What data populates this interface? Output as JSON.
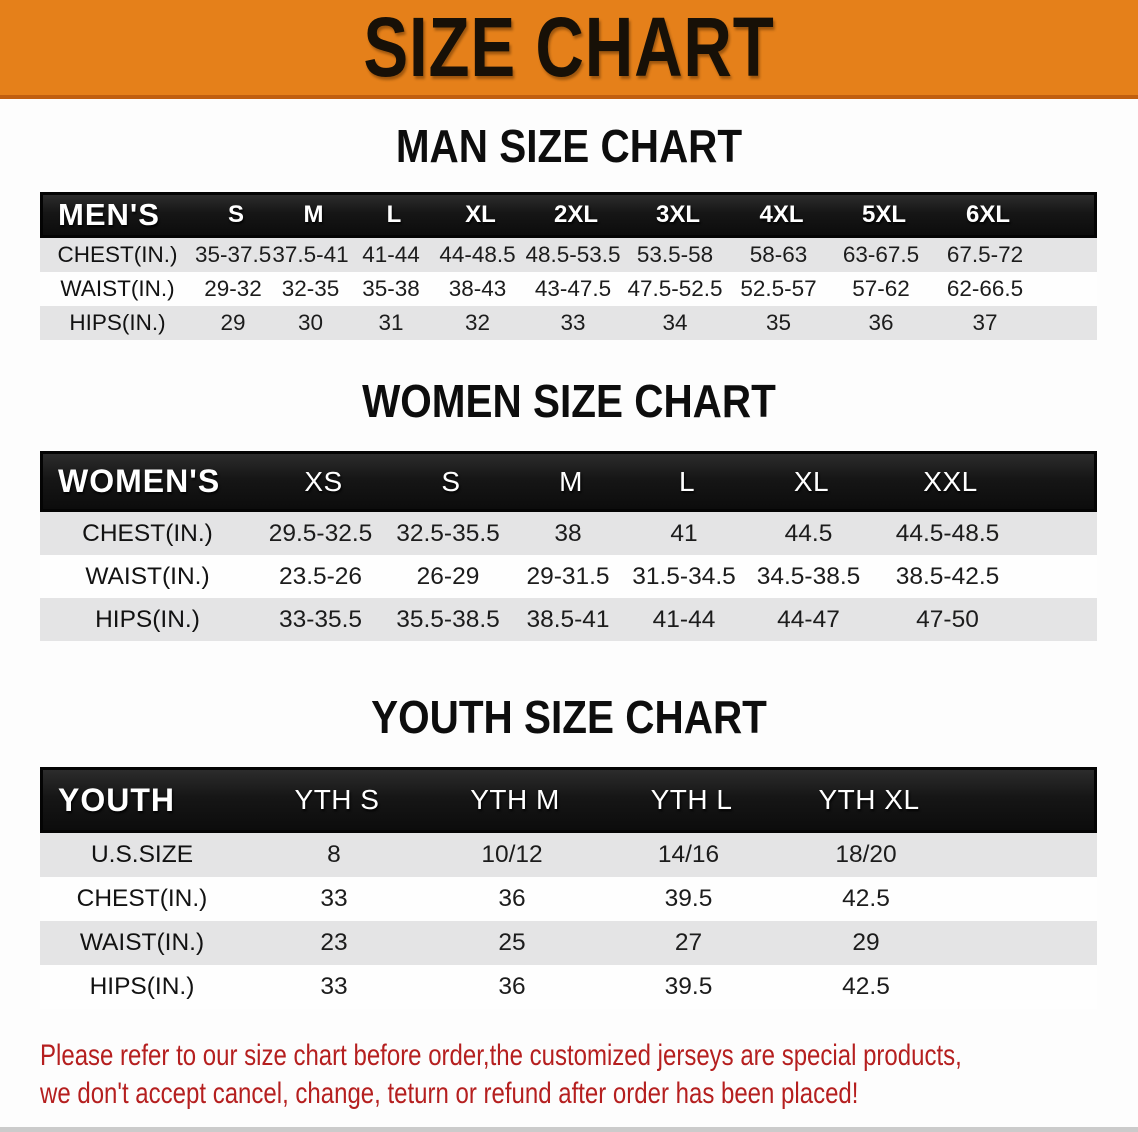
{
  "banner": {
    "title": "SIZE CHART"
  },
  "colors": {
    "banner_bg": "#E5801A",
    "banner_edge": "#C05F10",
    "header_bg": "#161616",
    "stripe_gray": "#E4E4E5",
    "disclaimer_red": "#B51F1F",
    "title_black": "#0D0D0D"
  },
  "sections": [
    {
      "title": "MAN SIZE CHART",
      "table": {
        "header": [
          "MEN'S",
          "S",
          "M",
          "L",
          "XL",
          "2XL",
          "3XL",
          "4XL",
          "5XL",
          "6XL"
        ],
        "rows": [
          {
            "label": "CHEST(IN.)",
            "values": [
              "35-37.5",
              "37.5-41",
              "41-44",
              "44-48.5",
              "48.5-53.5",
              "53.5-58",
              "58-63",
              "63-67.5",
              "67.5-72"
            ]
          },
          {
            "label": "WAIST(IN.)",
            "values": [
              "29-32",
              "32-35",
              "35-38",
              "38-43",
              "43-47.5",
              "47.5-52.5",
              "52.5-57",
              "57-62",
              "62-66.5"
            ]
          },
          {
            "label": "HIPS(IN.)",
            "values": [
              "29",
              "30",
              "31",
              "32",
              "33",
              "34",
              "35",
              "36",
              "37"
            ]
          }
        ]
      }
    },
    {
      "title": "WOMEN SIZE CHART",
      "table": {
        "header": [
          "WOMEN'S",
          "XS",
          "S",
          "M",
          "L",
          "XL",
          "XXL"
        ],
        "rows": [
          {
            "label": "CHEST(IN.)",
            "values": [
              "29.5-32.5",
              "32.5-35.5",
              "38",
              "41",
              "44.5",
              "44.5-48.5"
            ]
          },
          {
            "label": "WAIST(IN.)",
            "values": [
              "23.5-26",
              "26-29",
              "29-31.5",
              "31.5-34.5",
              "34.5-38.5",
              "38.5-42.5"
            ]
          },
          {
            "label": "HIPS(IN.)",
            "values": [
              "33-35.5",
              "35.5-38.5",
              "38.5-41",
              "41-44",
              "44-47",
              "47-50"
            ]
          }
        ]
      }
    },
    {
      "title": "YOUTH SIZE CHART",
      "table": {
        "header": [
          "YOUTH",
          "YTH S",
          "YTH M",
          "YTH L",
          "YTH XL"
        ],
        "rows": [
          {
            "label": "U.S.SIZE",
            "values": [
              "8",
              "10/12",
              "14/16",
              "18/20"
            ]
          },
          {
            "label": "CHEST(IN.)",
            "values": [
              "33",
              "36",
              "39.5",
              "42.5"
            ]
          },
          {
            "label": "WAIST(IN.)",
            "values": [
              "23",
              "25",
              "27",
              "29"
            ]
          },
          {
            "label": "HIPS(IN.)",
            "values": [
              "33",
              "36",
              "39.5",
              "42.5"
            ]
          }
        ]
      }
    }
  ],
  "footer": {
    "line1": "Please refer to our size chart before order,the customized jerseys are special products,",
    "line2": "we don't accept cancel, change, teturn or refund after order has been placed!"
  }
}
